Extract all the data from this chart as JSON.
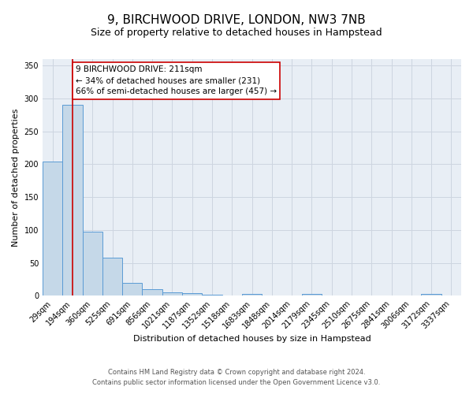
{
  "title": "9, BIRCHWOOD DRIVE, LONDON, NW3 7NB",
  "subtitle": "Size of property relative to detached houses in Hampstead",
  "xlabel": "Distribution of detached houses by size in Hampstead",
  "ylabel": "Number of detached properties",
  "categories": [
    "29sqm",
    "194sqm",
    "360sqm",
    "525sqm",
    "691sqm",
    "856sqm",
    "1021sqm",
    "1187sqm",
    "1352sqm",
    "1518sqm",
    "1683sqm",
    "1848sqm",
    "2014sqm",
    "2179sqm",
    "2345sqm",
    "2510sqm",
    "2675sqm",
    "2841sqm",
    "3006sqm",
    "3172sqm",
    "3337sqm"
  ],
  "values": [
    204,
    291,
    97,
    58,
    20,
    10,
    5,
    4,
    2,
    0,
    3,
    0,
    0,
    3,
    0,
    0,
    0,
    0,
    0,
    3,
    0
  ],
  "bar_color": "#c5d8e8",
  "bar_edge_color": "#5b9bd5",
  "vline_x": 1,
  "vline_color": "#cc0000",
  "annotation_text": "9 BIRCHWOOD DRIVE: 211sqm\n← 34% of detached houses are smaller (231)\n66% of semi-detached houses are larger (457) →",
  "annotation_box_color": "#ffffff",
  "annotation_box_edge_color": "#cc0000",
  "ylim": [
    0,
    360
  ],
  "yticks": [
    0,
    50,
    100,
    150,
    200,
    250,
    300,
    350
  ],
  "grid_color": "#cdd5e0",
  "background_color": "#e8eef5",
  "fig_background_color": "#ffffff",
  "footer_line1": "Contains HM Land Registry data © Crown copyright and database right 2024.",
  "footer_line2": "Contains public sector information licensed under the Open Government Licence v3.0.",
  "title_fontsize": 11,
  "subtitle_fontsize": 9,
  "annotation_fontsize": 7.5,
  "xlabel_fontsize": 8,
  "ylabel_fontsize": 8,
  "tick_fontsize": 7,
  "footer_fontsize": 6
}
